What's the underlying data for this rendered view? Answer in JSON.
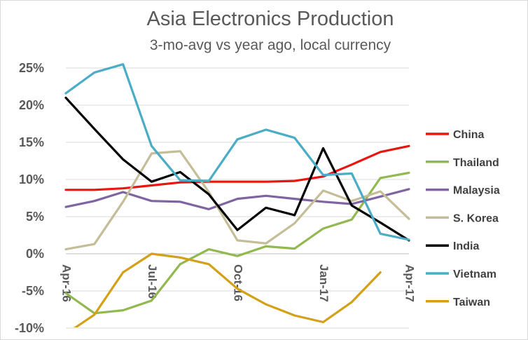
{
  "chart_data": {
    "type": "line",
    "title": "Asia Electronics Production",
    "subtitle": "3-mo-avg vs year ago, local currency",
    "x": [
      "Apr-16",
      "May-16",
      "Jun-16",
      "Jul-16",
      "Aug-16",
      "Sep-16",
      "Oct-16",
      "Nov-16",
      "Dec-16",
      "Jan-17",
      "Feb-17",
      "Mar-17",
      "Apr-17"
    ],
    "x_tick_labels": [
      "Apr-16",
      "Jul-16",
      "Oct-16",
      "Jan-17",
      "Apr-17"
    ],
    "y_tick_labels": [
      "25%",
      "20%",
      "15%",
      "10%",
      "5%",
      "0%",
      "-5%",
      "-10%"
    ],
    "ylim": [
      -10,
      28
    ],
    "grid": true,
    "legend_position": "right",
    "series": [
      {
        "name": "China",
        "color": "#e8160f",
        "values": [
          8.6,
          8.6,
          8.8,
          9.2,
          9.6,
          9.7,
          9.7,
          9.7,
          9.8,
          10.4,
          12.0,
          13.7,
          14.5
        ]
      },
      {
        "name": "Thailand",
        "color": "#92b94f",
        "values": [
          -5.3,
          -8.0,
          -7.6,
          -6.3,
          -1.4,
          0.6,
          -0.3,
          1.0,
          0.7,
          3.4,
          4.6,
          10.2,
          10.9
        ]
      },
      {
        "name": "Malaysia",
        "color": "#8064a2",
        "values": [
          6.3,
          7.1,
          8.3,
          7.1,
          7.0,
          6.0,
          7.4,
          7.8,
          7.4,
          7.0,
          6.7,
          7.7,
          8.7
        ]
      },
      {
        "name": "S. Korea",
        "color": "#c4bd97",
        "values": [
          0.6,
          1.3,
          7.0,
          13.5,
          13.8,
          8.3,
          1.8,
          1.4,
          4.1,
          8.5,
          7.1,
          8.4,
          4.7
        ]
      },
      {
        "name": "India",
        "color": "#000000",
        "values": [
          21.0,
          16.8,
          12.7,
          9.7,
          11.0,
          8.0,
          3.2,
          6.2,
          5.2,
          14.2,
          6.5,
          4.2,
          1.8
        ]
      },
      {
        "name": "Vietnam",
        "color": "#4bacc6",
        "values": [
          21.6,
          24.4,
          25.5,
          14.5,
          9.9,
          9.8,
          15.4,
          16.7,
          15.6,
          10.6,
          10.8,
          2.7,
          1.9
        ]
      },
      {
        "name": "Taiwan",
        "color": "#d4a017",
        "values": [
          -10.8,
          -8.2,
          -2.5,
          0.0,
          -0.5,
          -1.4,
          -4.7,
          -6.8,
          -8.3,
          -9.2,
          -6.5,
          -2.5,
          null
        ]
      }
    ]
  }
}
